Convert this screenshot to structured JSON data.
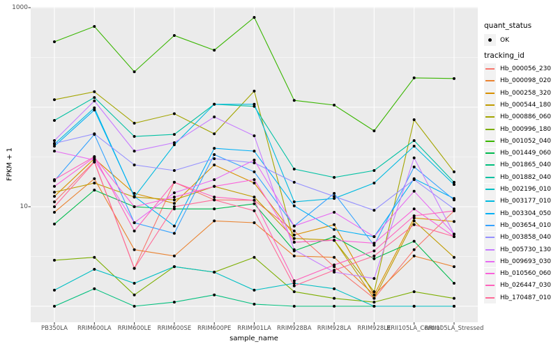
{
  "figure": {
    "panel_background": "#EBEBEB",
    "grid_color": "#FFFFFF",
    "point_color": "#000000",
    "axis_text_color": "#4D4D4D",
    "tick_color": "#333333"
  },
  "axes": {
    "x_title": "sample_name",
    "y_title": "FPKM + 1",
    "y_tick_labels": [
      "1000",
      "10"
    ]
  },
  "legend": {
    "quant_status_title": "quant_status",
    "quant_status_items": [
      {
        "label": "OK",
        "marker": "black-point"
      }
    ],
    "tracking_id_title": "tracking_id"
  },
  "chart_data": {
    "type": "line",
    "title": "",
    "xlabel": "sample_name",
    "ylabel": "FPKM + 1",
    "y_scale": "log10",
    "ylim": [
      0.9,
      1100
    ],
    "y_major_gridlines": [
      1,
      10,
      100,
      1000
    ],
    "y_minor_gridlines": [
      3.16,
      31.6,
      316
    ],
    "y_labeled_breaks": [
      10,
      1000
    ],
    "grid": true,
    "legend_position": "right",
    "marker": "black-point",
    "categories": [
      "PB350LA",
      "RRIM600LA",
      "RRIM600LE",
      "RRIM600SE",
      "RRIM600PE",
      "RRIM901LA",
      "RRIM928BA",
      "RRIM928LA",
      "RRIM928LE",
      "RRII105LA_Control",
      "RRII105LA_Stressed"
    ],
    "series": [
      {
        "name": "Hb_000056_230",
        "color": "#F8766D",
        "values": [
          11.2,
          28.5,
          2.4,
          17.6,
          11.7,
          11.6,
          5.7,
          2.5,
          1.2,
          3.7,
          9.1
        ]
      },
      {
        "name": "Hb_000098_020",
        "color": "#EA8331",
        "values": [
          8.8,
          19.1,
          3.7,
          3.2,
          7.2,
          6.9,
          3.2,
          3.1,
          1.3,
          3.2,
          2.5
        ]
      },
      {
        "name": "Hb_000258_320",
        "color": "#D89000",
        "values": [
          12.7,
          30.4,
          13.6,
          10.8,
          26.3,
          17.3,
          5.2,
          6.6,
          1.3,
          7.7,
          7.1
        ]
      },
      {
        "name": "Hb_000544_180",
        "color": "#C09B00",
        "values": [
          14.0,
          17.3,
          12.5,
          11.7,
          16.0,
          12.5,
          4.8,
          4.6,
          1.2,
          7.2,
          3.1
        ]
      },
      {
        "name": "Hb_000886_060",
        "color": "#A3A500",
        "values": [
          119,
          143,
          69,
          86,
          54,
          145,
          4.4,
          4.6,
          1.4,
          74.8,
          22.4
        ]
      },
      {
        "name": "Hb_000996_180",
        "color": "#7CAE00",
        "values": [
          2.9,
          3.1,
          1.3,
          2.5,
          2.2,
          3.1,
          1.4,
          1.2,
          1.1,
          1.4,
          1.2
        ]
      },
      {
        "name": "Hb_001052_040",
        "color": "#39B600",
        "values": [
          454,
          647,
          227,
          525,
          374,
          798,
          117,
          105,
          57.8,
          197,
          194
        ]
      },
      {
        "name": "Hb_001449_060",
        "color": "#00BB4E",
        "values": [
          6.7,
          14.7,
          10.0,
          9.5,
          9.5,
          10.7,
          3.6,
          5.0,
          3.0,
          4.5,
          1.7
        ]
      },
      {
        "name": "Hb_001865_040",
        "color": "#00BF7D",
        "values": [
          1.0,
          1.5,
          1.0,
          1.1,
          1.3,
          1.05,
          1.0,
          1.0,
          1.0,
          1.0,
          1.0
        ]
      },
      {
        "name": "Hb_001882_040",
        "color": "#00C1A3",
        "values": [
          73.6,
          125,
          50.8,
          53.3,
          107,
          102,
          23.9,
          19.7,
          23.1,
          46.2,
          17.6
        ]
      },
      {
        "name": "Hb_002196_010",
        "color": "#00BFC4",
        "values": [
          1.45,
          2.35,
          1.7,
          2.5,
          2.2,
          1.45,
          1.7,
          1.5,
          1.0,
          1.0,
          1.0
        ]
      },
      {
        "name": "Hb_003177_010",
        "color": "#00BAE0",
        "values": [
          42.6,
          98.4,
          12.5,
          41.9,
          107,
          107,
          11.2,
          12.1,
          17.3,
          40.6,
          16.7
        ]
      },
      {
        "name": "Hb_003304_050",
        "color": "#00B0F6",
        "values": [
          40.6,
          93.8,
          12.7,
          6.4,
          38.6,
          36.2,
          10.2,
          5.9,
          5.0,
          19.1,
          12.1
        ]
      },
      {
        "name": "Hb_003654_010",
        "color": "#35A2FF",
        "values": [
          18.2,
          53.3,
          6.9,
          5.4,
          33.4,
          22.4,
          6.4,
          13.6,
          4.1,
          25.1,
          11.7
        ]
      },
      {
        "name": "Hb_003858_040",
        "color": "#9590FF",
        "values": [
          43.3,
          54,
          26.3,
          23.1,
          30.4,
          27.6,
          17.6,
          12.7,
          9.2,
          18.7,
          9.5
        ]
      },
      {
        "name": "Hb_005730_130",
        "color": "#C77CFF",
        "values": [
          46.2,
          115.6,
          36.2,
          44,
          79.8,
          51.6,
          3.7,
          2.2,
          1.9,
          30.9,
          5.3
        ]
      },
      {
        "name": "Hb_009693_030",
        "color": "#E76BF3",
        "values": [
          36.2,
          29.4,
          6.9,
          13.8,
          18.7,
          29.4,
          6.4,
          8.8,
          5.0,
          14.3,
          5.3
        ]
      },
      {
        "name": "Hb_010560_060",
        "color": "#FA62DB",
        "values": [
          16.0,
          31.4,
          10.0,
          12.5,
          16.0,
          18.7,
          4.4,
          4.6,
          4.3,
          9.5,
          5.0
        ]
      },
      {
        "name": "Hb_026447_030",
        "color": "#FF62BC",
        "values": [
          18.7,
          31.9,
          5.7,
          17.6,
          12.5,
          11.6,
          1.8,
          2.6,
          3.6,
          8.1,
          9.1
        ]
      },
      {
        "name": "Hb_170487_010",
        "color": "#FF6A98",
        "values": [
          10.0,
          28.1,
          2.4,
          10.0,
          11.7,
          9.1,
          1.6,
          2.3,
          3.2,
          6.6,
          5.0
        ]
      }
    ]
  }
}
